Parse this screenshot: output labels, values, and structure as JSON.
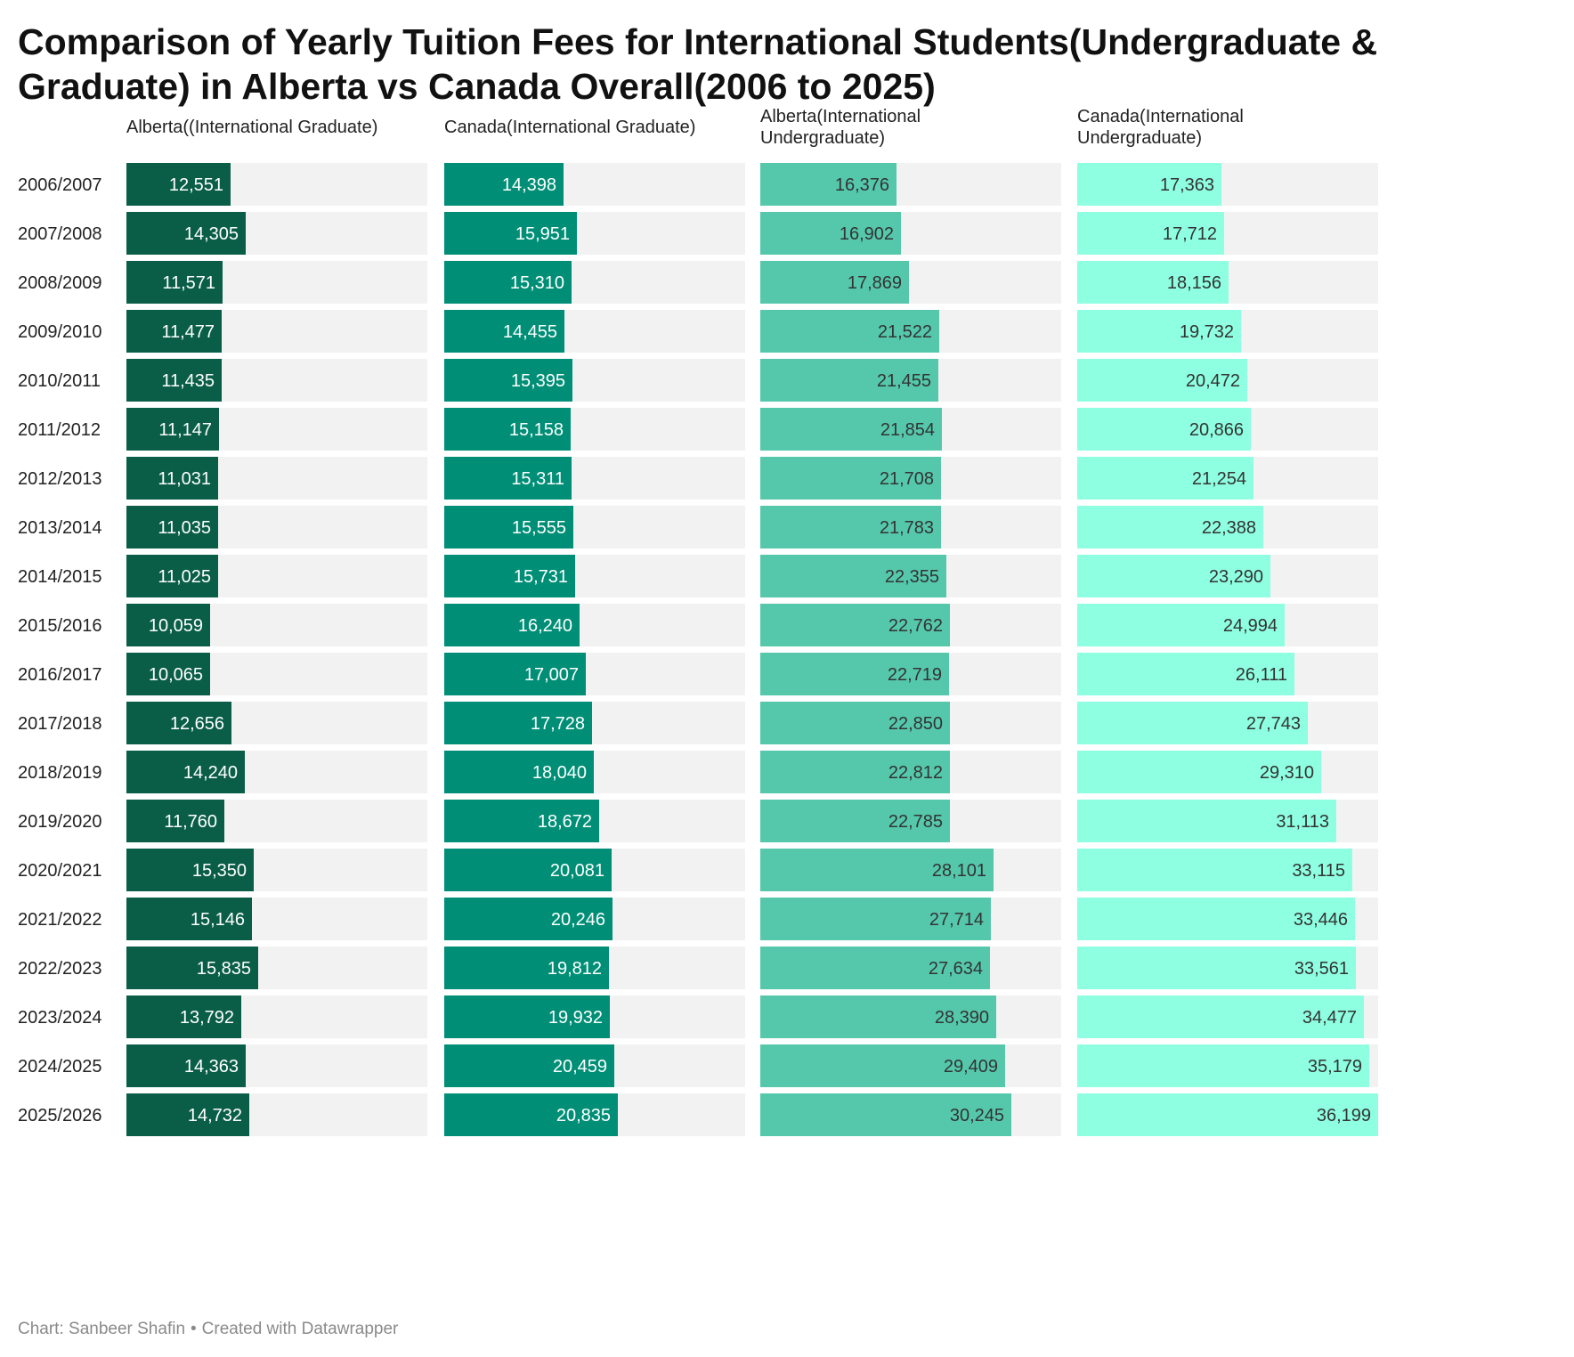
{
  "title": "Comparison of Yearly Tuition Fees for International Students(Undergraduate & Graduate) in Alberta vs Canada Overall(2006 to 2025)",
  "footer": {
    "source": "Chart: Sanbeer Shafin",
    "separator": "•",
    "credit": "Created with Datawrapper"
  },
  "colors": {
    "track": "#f2f2f2",
    "series": [
      "#0a5e48",
      "#008f76",
      "#55c8ac",
      "#8effe1"
    ],
    "label_dark_bg": "#ffffff",
    "label_light_bg": "#333333",
    "axis_text": "#222222"
  },
  "chart_data": {
    "type": "bar",
    "orientation": "horizontal",
    "layout": "small-multiples",
    "categories": [
      "2006/2007",
      "2007/2008",
      "2008/2009",
      "2009/2010",
      "2010/2011",
      "2011/2012",
      "2012/2013",
      "2013/2014",
      "2014/2015",
      "2015/2016",
      "2016/2017",
      "2017/2018",
      "2018/2019",
      "2019/2020",
      "2020/2021",
      "2021/2022",
      "2022/2023",
      "2023/2024",
      "2024/2025",
      "2025/2026"
    ],
    "series": [
      {
        "name": "Alberta((International Graduate)",
        "values": [
          12551,
          14305,
          11571,
          11477,
          11435,
          11147,
          11031,
          11035,
          11025,
          10059,
          10065,
          12656,
          14240,
          11760,
          15350,
          15146,
          15835,
          13792,
          14363,
          14732
        ]
      },
      {
        "name": "Canada(International Graduate)",
        "values": [
          14398,
          15951,
          15310,
          14455,
          15395,
          15158,
          15311,
          15555,
          15731,
          16240,
          17007,
          17728,
          18040,
          18672,
          20081,
          20246,
          19812,
          19932,
          20459,
          20835
        ]
      },
      {
        "name": "Alberta(International Undergraduate)",
        "values": [
          16376,
          16902,
          17869,
          21522,
          21455,
          21854,
          21708,
          21783,
          22355,
          22762,
          22719,
          22850,
          22812,
          22785,
          28101,
          27714,
          27634,
          28390,
          29409,
          30245
        ]
      },
      {
        "name": "Canada(International Undergraduate)",
        "values": [
          17363,
          17712,
          18156,
          19732,
          20472,
          20866,
          21254,
          22388,
          23290,
          24994,
          26111,
          27743,
          29310,
          31113,
          33115,
          33446,
          33561,
          34477,
          35179,
          36199
        ]
      }
    ],
    "xlim": [
      0,
      36199
    ],
    "grid": false,
    "legend": "none",
    "data_labels": true
  }
}
